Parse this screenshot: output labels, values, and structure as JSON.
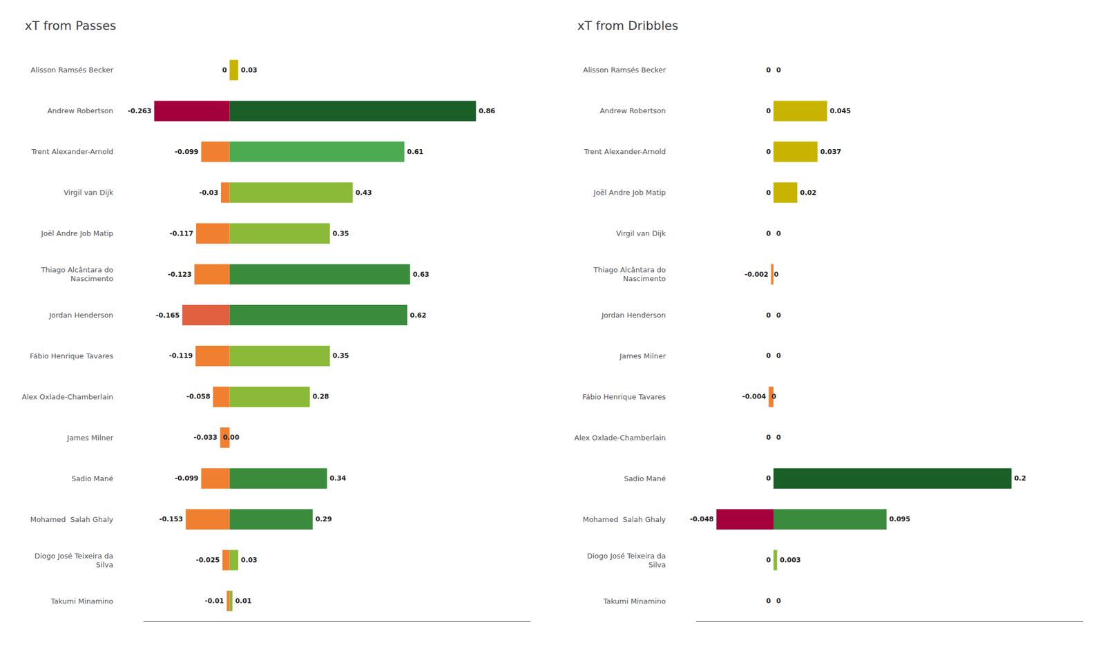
{
  "chart_data": [
    {
      "type": "bar",
      "title": "xT from Passes",
      "orientation": "horizontal",
      "stacked": true,
      "categories": [
        "Alisson Ramsés Becker",
        "Andrew Robertson",
        "Trent Alexander-Arnold",
        "Virgil van Dijk",
        "Joël Andre Job Matip",
        "Thiago Alcântara do\nNascimento",
        "Jordan Henderson",
        "Fábio Henrique Tavares",
        "Alex Oxlade-Chamberlain",
        "James Milner",
        "Sadio Mané",
        "Mohamed  Salah Ghaly",
        "Diogo José Teixeira da\nSilva",
        "Takumi Minamino"
      ],
      "series": [
        {
          "values": [
            0.0,
            -0.263,
            -0.099,
            -0.03,
            -0.117,
            -0.123,
            -0.165,
            -0.119,
            -0.058,
            -0.033,
            -0.099,
            -0.153,
            -0.025,
            -0.01
          ],
          "value_labels": [
            "0",
            "-0.263",
            "-0.099",
            "-0.03",
            "-0.117",
            "-0.123",
            "-0.165",
            "-0.119",
            "-0.058",
            "-0.033",
            "-0.099",
            "-0.153",
            "-0.025",
            "-0.01"
          ],
          "colors": [
            "#c8b400",
            "#a3003c",
            "#f08030",
            "#f08030",
            "#f08030",
            "#f08030",
            "#e06040",
            "#f08030",
            "#f08030",
            "#f08030",
            "#f08030",
            "#f08030",
            "#f08030",
            "#f08030"
          ]
        },
        {
          "values": [
            0.03,
            0.86,
            0.61,
            0.43,
            0.35,
            0.63,
            0.62,
            0.35,
            0.28,
            0.0,
            0.34,
            0.29,
            0.03,
            0.01
          ],
          "value_labels": [
            "0.03",
            "0.86",
            "0.61",
            "0.43",
            "0.35",
            "0.63",
            "0.62",
            "0.35",
            "0.28",
            "0.00",
            "0.34",
            "0.29",
            "0.03",
            "0.01"
          ],
          "colors": [
            "#c8b400",
            "#1a5e28",
            "#4caa50",
            "#8aba38",
            "#8aba38",
            "#3a8c3c",
            "#3a8c3c",
            "#8aba38",
            "#8aba38",
            "#8aba38",
            "#3a8c3c",
            "#3a8c3c",
            "#8aba38",
            "#8aba38"
          ]
        }
      ],
      "xlim": [
        -0.3,
        1.05
      ],
      "tick_labels": false,
      "grid": false,
      "data_labels": true
    },
    {
      "type": "bar",
      "title": "xT from Dribbles",
      "orientation": "horizontal",
      "stacked": true,
      "categories": [
        "Alisson Ramsés Becker",
        "Andrew Robertson",
        "Trent Alexander-Arnold",
        "Joël Andre Job Matip",
        "Virgil van Dijk",
        "Thiago Alcântara do\nNascimento",
        "Jordan Henderson",
        "James Milner",
        "Fábio Henrique Tavares",
        "Alex Oxlade-Chamberlain",
        "Sadio Mané",
        "Mohamed  Salah Ghaly",
        "Diogo José Teixeira da\nSilva",
        "Takumi Minamino"
      ],
      "series": [
        {
          "values": [
            0.0,
            0.0,
            0.0,
            0.0,
            0.0,
            -0.002,
            0.0,
            0.0,
            -0.004,
            0.0,
            0.0,
            -0.048,
            0.0,
            0.0
          ],
          "value_labels": [
            "0",
            "0",
            "0",
            "0",
            "0",
            "-0.002",
            "0",
            "0",
            "-0.004",
            "0",
            "0",
            "-0.048",
            "0",
            "0"
          ],
          "colors": [
            "#c8b400",
            "#c8b400",
            "#c8b400",
            "#c8b400",
            "#c8b400",
            "#f08030",
            "#c8b400",
            "#c8b400",
            "#f08030",
            "#c8b400",
            "#c8b400",
            "#a3003c",
            "#c8b400",
            "#c8b400"
          ]
        },
        {
          "values": [
            0.0,
            0.045,
            0.037,
            0.02,
            0.0,
            0.0,
            0.0,
            0.0,
            0.0,
            0.0,
            0.2,
            0.095,
            0.003,
            0.0
          ],
          "value_labels": [
            "0",
            "0.045",
            "0.037",
            "0.02",
            "0",
            "0",
            "0",
            "0",
            "0",
            "0",
            "0.2",
            "0.095",
            "0.003",
            "0"
          ],
          "colors": [
            "#c8b400",
            "#c8b400",
            "#c8b400",
            "#c8b400",
            "#c8b400",
            "#c8b400",
            "#c8b400",
            "#c8b400",
            "#c8b400",
            "#c8b400",
            "#1a5e28",
            "#3a8c3c",
            "#8aba38",
            "#c8b400"
          ]
        }
      ],
      "xlim": [
        -0.065,
        0.26
      ],
      "tick_labels": false,
      "grid": false,
      "data_labels": true
    }
  ]
}
